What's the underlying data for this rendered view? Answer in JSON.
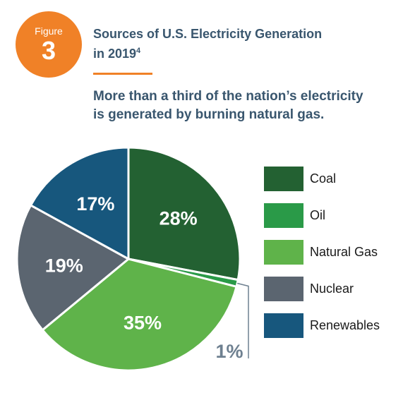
{
  "figure": {
    "label": "Figure",
    "number": "3"
  },
  "title": {
    "line1": "Sources of U.S. Electricity Generation",
    "line2": "in 2019",
    "footnote": "4"
  },
  "subtitle": {
    "line1": "More than a third of the nation’s electricity",
    "line2": "is generated by burning natural gas."
  },
  "colors": {
    "accent": "#f08127",
    "text": "#39566e",
    "leader": "#6e8090"
  },
  "chart_data": {
    "type": "pie",
    "categories": [
      "Coal",
      "Oil",
      "Natural Gas",
      "Nuclear",
      "Renewables"
    ],
    "values": [
      28,
      1,
      35,
      19,
      17
    ],
    "value_labels": [
      "28%",
      "1%",
      "35%",
      "19%",
      "17%"
    ],
    "colors": [
      "#236132",
      "#2a9a48",
      "#5fb34a",
      "#5b6570",
      "#17577d"
    ],
    "legend_position": "right"
  }
}
